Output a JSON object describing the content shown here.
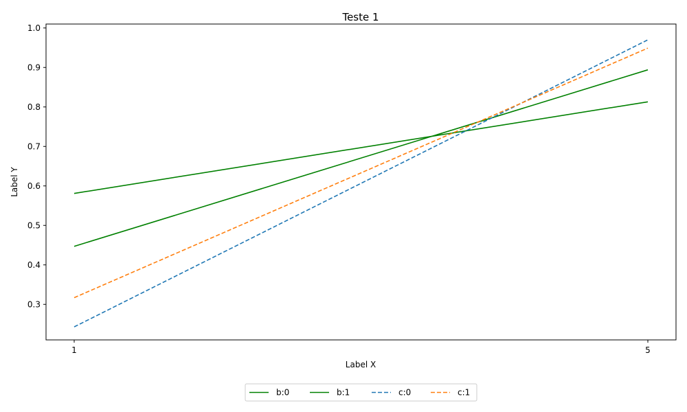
{
  "chart_data": {
    "type": "line",
    "title": "Teste 1",
    "xlabel": "Label X",
    "ylabel": "Label Y",
    "x": [
      1,
      5
    ],
    "xticks": [
      "1",
      "5"
    ],
    "ylim": [
      0.21,
      1.01
    ],
    "yticks": [
      0.3,
      0.4,
      0.5,
      0.6,
      0.7,
      0.8,
      0.9,
      1.0
    ],
    "ytick_labels": [
      "0.3",
      "0.4",
      "0.5",
      "0.6",
      "0.7",
      "0.8",
      "0.9",
      "1.0"
    ],
    "grid": false,
    "legend_position": "bottom-center",
    "series": [
      {
        "name": "b:0",
        "values": [
          0.581,
          0.813
        ],
        "color": "#008000",
        "style": "solid"
      },
      {
        "name": "b:1",
        "values": [
          0.447,
          0.894
        ],
        "color": "#008000",
        "style": "solid"
      },
      {
        "name": "c:0",
        "values": [
          0.243,
          0.97
        ],
        "color": "#1f77b4",
        "style": "dashed"
      },
      {
        "name": "c:1",
        "values": [
          0.317,
          0.949
        ],
        "color": "#ff7f0e",
        "style": "dashed"
      }
    ]
  }
}
